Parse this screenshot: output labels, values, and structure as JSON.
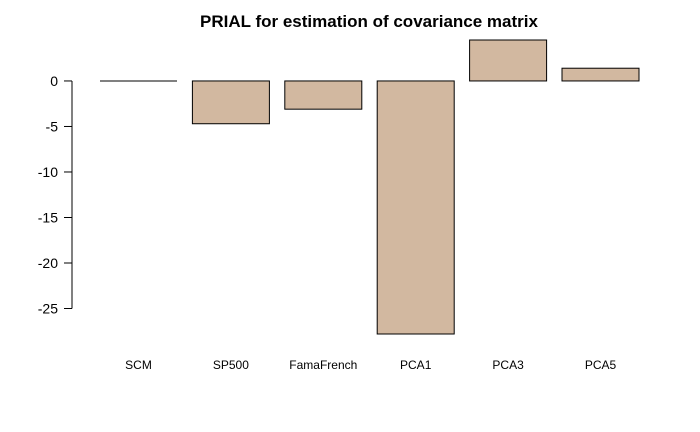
{
  "chart_data": {
    "type": "bar",
    "title": "PRIAL for estimation of covariance matrix",
    "xlabel": "",
    "ylabel": "",
    "categories": [
      "SCM",
      "SP500",
      "FamaFrench",
      "PCA1",
      "PCA3",
      "PCA5"
    ],
    "values": [
      0,
      -4.7,
      -3.1,
      -27.8,
      4.5,
      1.4
    ],
    "ylim": [
      -27.8,
      4.5
    ],
    "yticks": [
      0,
      -5,
      -10,
      -15,
      -20,
      -25
    ],
    "ytick_labels": [
      "0",
      "-5",
      "-10",
      "-15",
      "-20",
      "-25"
    ],
    "grid": false,
    "legend": "none",
    "colors": {
      "bar_fill": "#d2b8a0",
      "bar_stroke": "#000000",
      "axis": "#000000",
      "text": "#000000"
    }
  }
}
